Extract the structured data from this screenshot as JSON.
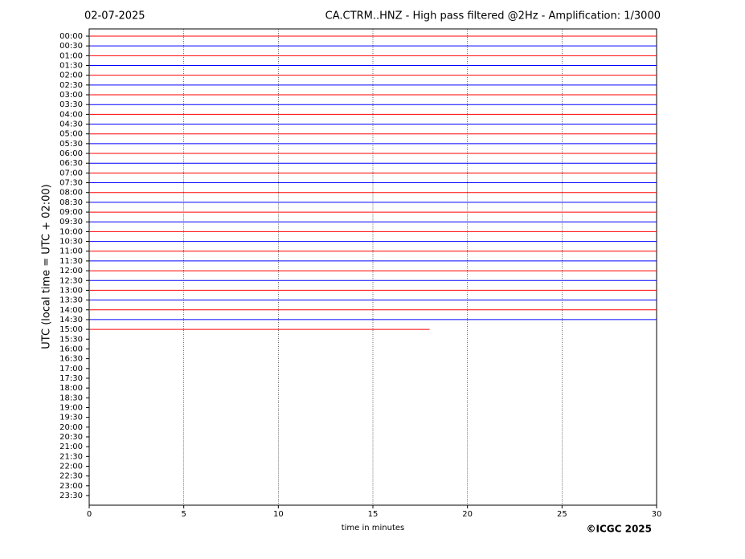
{
  "chart_data": {
    "type": "helicorder",
    "date": "02-07-2025",
    "title": "CA.CTRM..HNZ - High pass filtered @2Hz - Amplification: 1/3000",
    "ylabel": "UTC (local time = UTC + 02:00)",
    "xlabel": "time in minutes",
    "copyright": "©ICGC 2025",
    "categories": [
      "00:00",
      "00:30",
      "01:00",
      "01:30",
      "02:00",
      "02:30",
      "03:00",
      "03:30",
      "04:00",
      "04:30",
      "05:00",
      "05:30",
      "06:00",
      "06:30",
      "07:00",
      "07:30",
      "08:00",
      "08:30",
      "09:00",
      "09:30",
      "10:00",
      "10:30",
      "11:00",
      "11:30",
      "12:00",
      "12:30",
      "13:00",
      "13:30",
      "14:00",
      "14:30",
      "15:00",
      "15:30",
      "16:00",
      "16:30",
      "17:00",
      "17:30",
      "18:00",
      "18:30",
      "19:00",
      "19:30",
      "20:00",
      "20:30",
      "21:00",
      "21:30",
      "22:00",
      "22:30",
      "23:00",
      "23:30"
    ],
    "values": [
      30,
      30,
      30,
      30,
      30,
      30,
      30,
      30,
      30,
      30,
      30,
      30,
      30,
      30,
      30,
      30,
      30,
      30,
      30,
      30,
      30,
      30,
      30,
      30,
      30,
      30,
      30,
      30,
      30,
      30,
      18,
      null,
      null,
      null,
      null,
      null,
      null,
      null,
      null,
      null,
      null,
      null,
      null,
      null,
      null,
      null,
      null,
      null
    ],
    "colors": [
      "#ff0000",
      "#0000ff"
    ],
    "xlim": [
      0,
      30
    ],
    "xticks": [
      0,
      5,
      10,
      15,
      20,
      25,
      30
    ],
    "grid": true
  }
}
